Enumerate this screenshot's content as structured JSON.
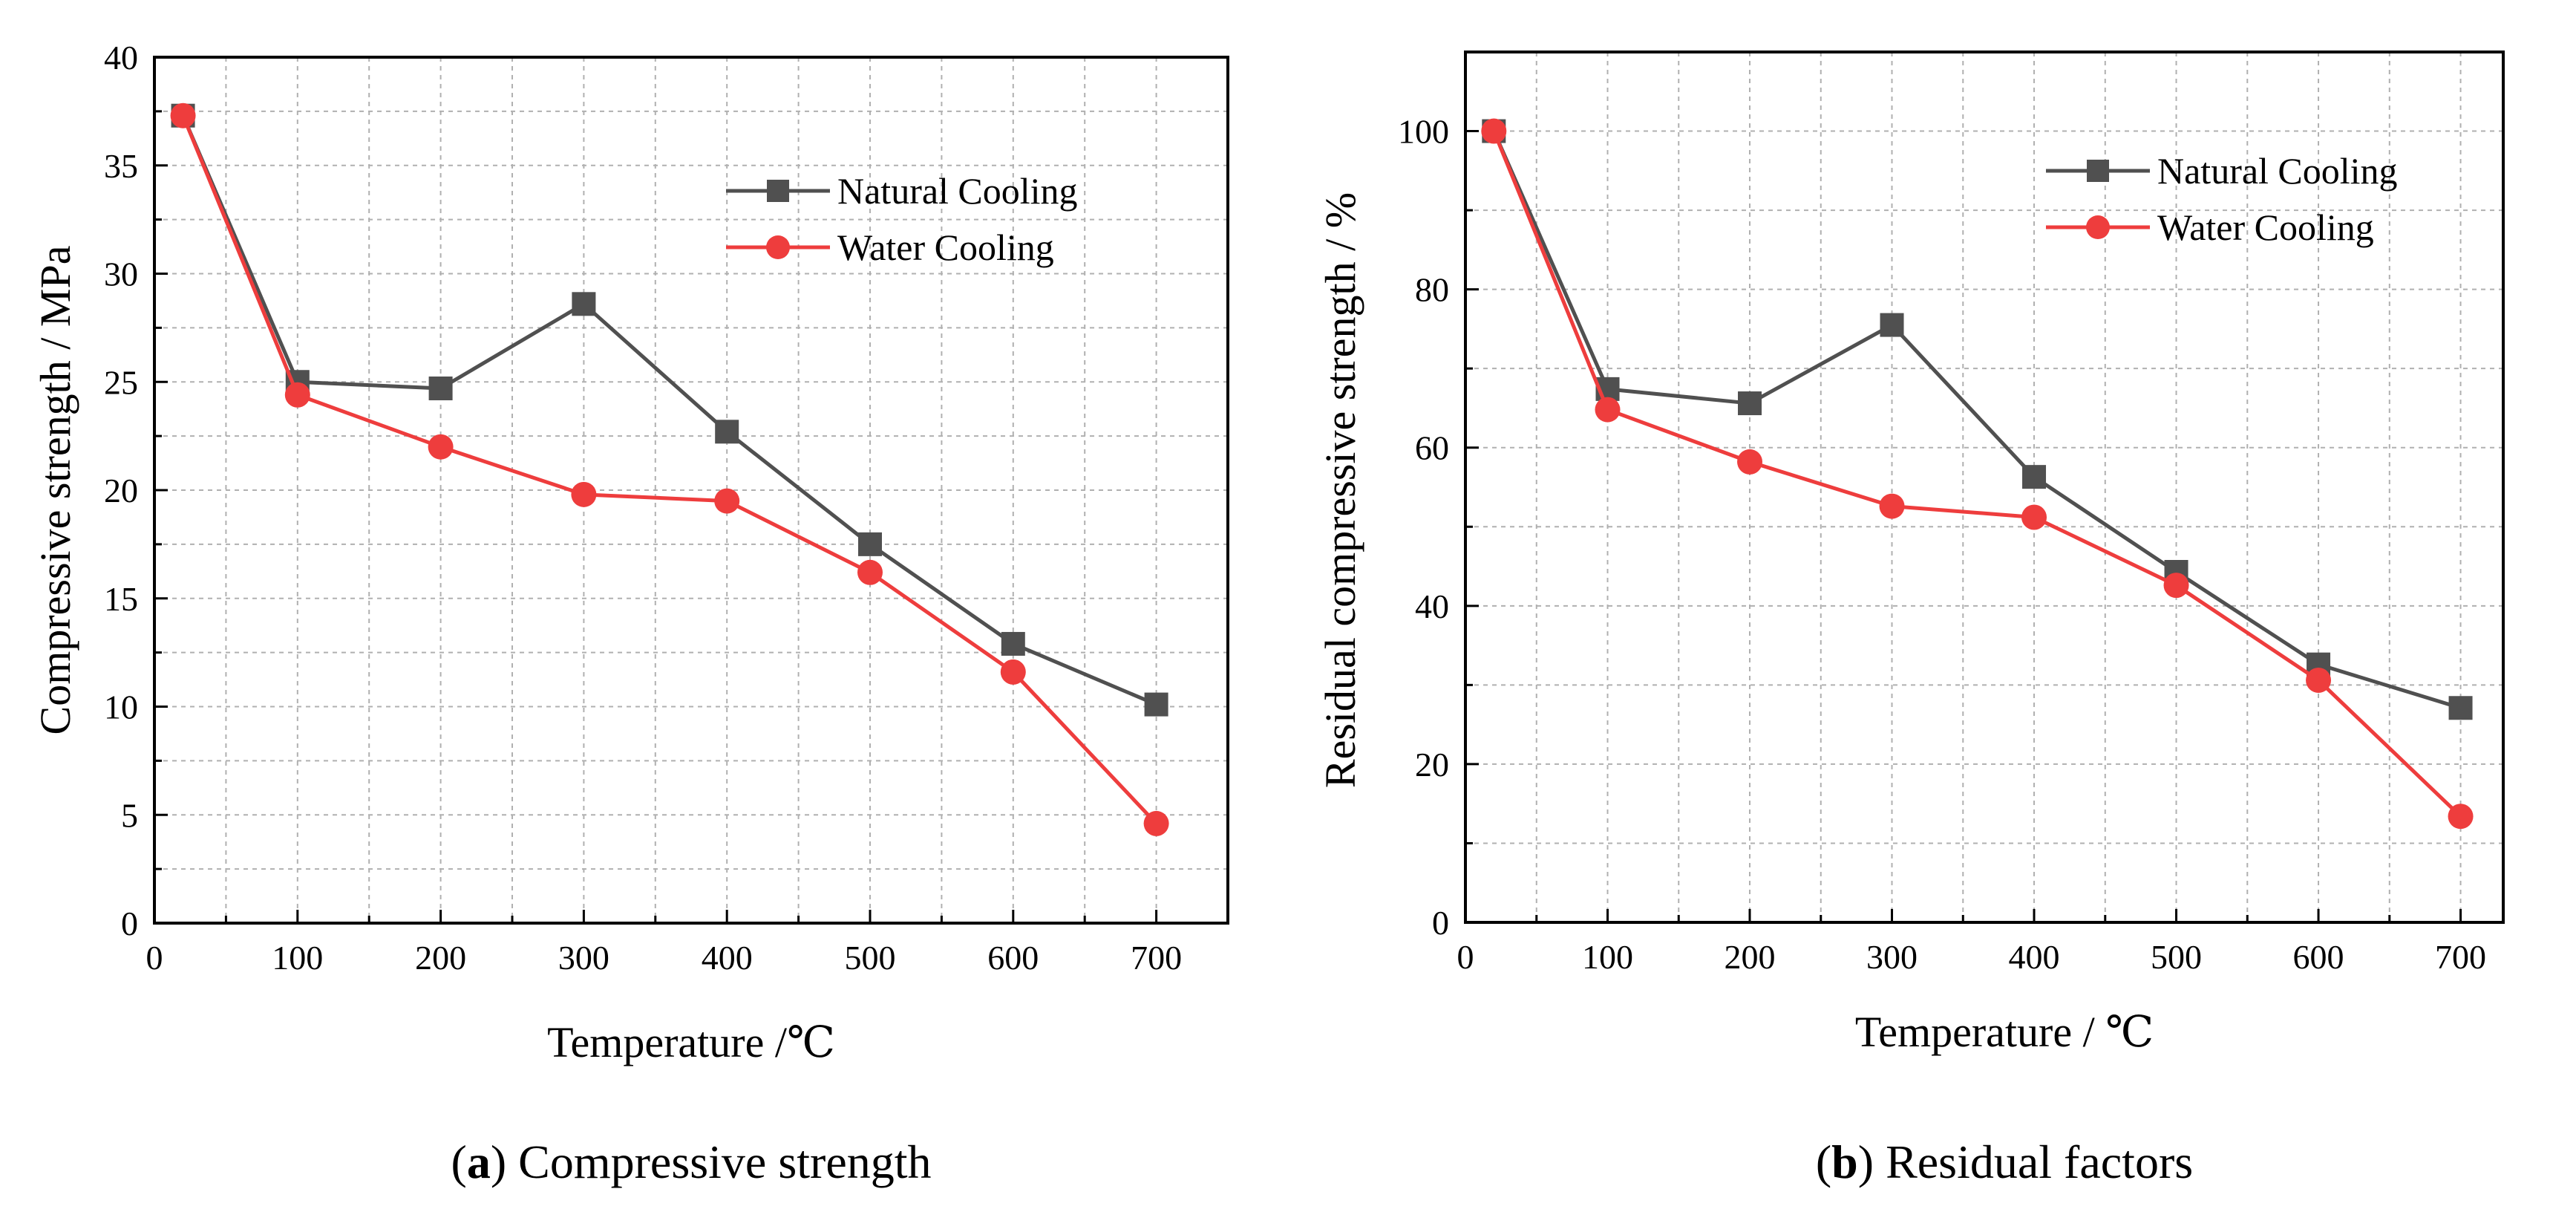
{
  "chart_data": [
    {
      "type": "line",
      "caption_letter": "a",
      "caption_text": " Compressive strength",
      "xlabel": "Temperature /℃",
      "ylabel": "Compressive strength / MPa",
      "xlim": [
        0,
        750
      ],
      "ylim": [
        0,
        40
      ],
      "xticks": [
        0,
        100,
        200,
        300,
        400,
        500,
        600,
        700
      ],
      "yticks": [
        0,
        5,
        10,
        15,
        20,
        25,
        30,
        35,
        40
      ],
      "grid": true,
      "legend_position": "top-right",
      "x": [
        20,
        100,
        200,
        300,
        400,
        500,
        600,
        700
      ],
      "series": [
        {
          "name": "Natural Cooling",
          "color": "#505050",
          "marker": "square",
          "values": [
            37.3,
            25.0,
            24.7,
            28.6,
            22.7,
            17.5,
            12.9,
            10.1
          ]
        },
        {
          "name": "Water Cooling",
          "color": "#ee3d3d",
          "marker": "circle",
          "values": [
            37.3,
            24.4,
            22.0,
            19.8,
            19.5,
            16.2,
            11.6,
            4.6
          ]
        }
      ]
    },
    {
      "type": "line",
      "caption_letter": "b",
      "caption_text": " Residual factors",
      "xlabel": "Temperature / ℃",
      "ylabel": "Residual compressive strength  / %",
      "xlim": [
        0,
        730
      ],
      "ylim": [
        0,
        110
      ],
      "xticks": [
        0,
        100,
        200,
        300,
        400,
        500,
        600,
        700
      ],
      "yticks": [
        0,
        20,
        40,
        60,
        80,
        100
      ],
      "grid": true,
      "legend_position": "top-right",
      "x": [
        20,
        100,
        200,
        300,
        400,
        500,
        600,
        700
      ],
      "series": [
        {
          "name": "Natural Cooling",
          "color": "#505050",
          "marker": "square",
          "values": [
            100,
            67.4,
            65.6,
            75.5,
            56.3,
            44.3,
            32.6,
            27.1
          ]
        },
        {
          "name": "Water Cooling",
          "color": "#ee3d3d",
          "marker": "circle",
          "values": [
            100,
            64.8,
            58.2,
            52.6,
            51.2,
            42.6,
            30.6,
            13.4
          ]
        }
      ]
    }
  ]
}
